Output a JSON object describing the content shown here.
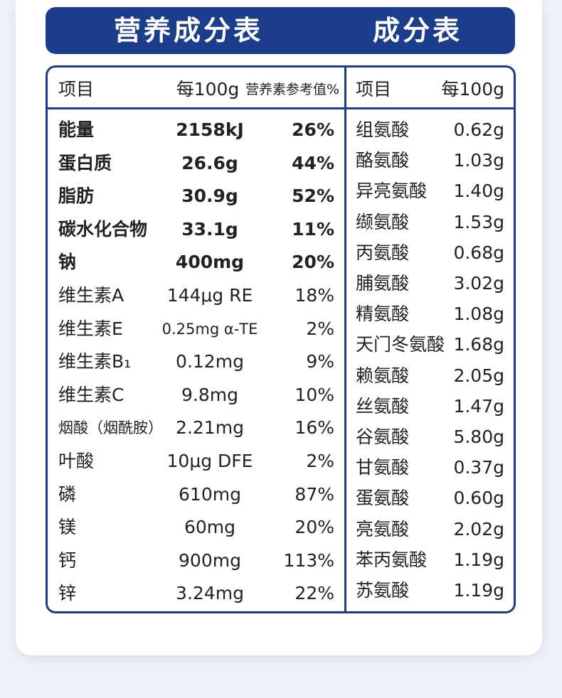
{
  "header": {
    "left_title": "营养成分表",
    "right_title": "成分表"
  },
  "nutrition_table": {
    "columns": [
      "项目",
      "每100g",
      "营养素参考值%"
    ],
    "rows": [
      [
        "能量",
        "2158kJ",
        "26%"
      ],
      [
        "蛋白质",
        "26.6g",
        "44%"
      ],
      [
        "脂肪",
        "30.9g",
        "52%"
      ],
      [
        "碳水化合物",
        "33.1g",
        "11%"
      ],
      [
        "钠",
        "400mg",
        "20%"
      ],
      [
        "维生素A",
        "144μg RE",
        "18%"
      ],
      [
        "维生素E",
        "0.25mg α-TE",
        "2%"
      ],
      [
        "维生素B₁",
        "0.12mg",
        "9%"
      ],
      [
        "维生素C",
        "9.8mg",
        "10%"
      ],
      [
        "烟酸（烟酰胺）",
        "2.21mg",
        "16%"
      ],
      [
        "叶酸",
        "10μg DFE",
        "2%"
      ],
      [
        "磷",
        "610mg",
        "87%"
      ],
      [
        "镁",
        "60mg",
        "20%"
      ],
      [
        "钙",
        "900mg",
        "113%"
      ],
      [
        "锌",
        "3.24mg",
        "22%"
      ]
    ]
  },
  "amino_acid_table": {
    "columns": [
      "项目",
      "每100g"
    ],
    "rows": [
      [
        "组氨酸",
        "0.62g"
      ],
      [
        "酪氨酸",
        "1.03g"
      ],
      [
        "异亮氨酸",
        "1.40g"
      ],
      [
        "缬氨酸",
        "1.53g"
      ],
      [
        "丙氨酸",
        "0.68g"
      ],
      [
        "脯氨酸",
        "3.02g"
      ],
      [
        "精氨酸",
        "1.08g"
      ],
      [
        "天门冬氨酸",
        "1.68g"
      ],
      [
        "赖氨酸",
        "2.05g"
      ],
      [
        "丝氨酸",
        "1.47g"
      ],
      [
        "谷氨酸",
        "5.80g"
      ],
      [
        "甘氨酸",
        "0.37g"
      ],
      [
        "蛋氨酸",
        "0.60g"
      ],
      [
        "亮氨酸",
        "2.02g"
      ],
      [
        "苯丙氨酸",
        "1.19g"
      ],
      [
        "苏氨酸",
        "1.19g"
      ]
    ]
  }
}
